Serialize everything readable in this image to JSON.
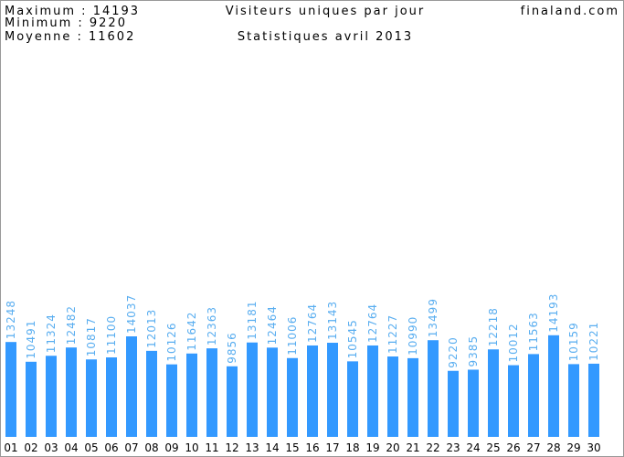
{
  "chart_data": {
    "type": "bar",
    "title": "Visiteurs uniques par jour",
    "subtitle": "Statistiques avril 2013",
    "site": "finaland.com",
    "stats": [
      "Maximum : 14193",
      "Minimum : 9220",
      "Moyenne : 11602"
    ],
    "categories": [
      "01",
      "02",
      "03",
      "04",
      "05",
      "06",
      "07",
      "08",
      "09",
      "10",
      "11",
      "12",
      "13",
      "14",
      "15",
      "16",
      "17",
      "18",
      "19",
      "20",
      "21",
      "22",
      "23",
      "24",
      "25",
      "26",
      "27",
      "28",
      "29",
      "30"
    ],
    "values": [
      13248,
      10491,
      11324,
      12482,
      10817,
      11100,
      14037,
      12013,
      10126,
      11642,
      12363,
      9856,
      13181,
      12464,
      11006,
      12764,
      13143,
      10545,
      12764,
      11227,
      10990,
      13499,
      9220,
      9385,
      12218,
      10012,
      11563,
      14193,
      10159,
      10221
    ],
    "color": "#3399ff",
    "label_color": "#5aaef0",
    "ylim": [
      0,
      61000
    ]
  }
}
